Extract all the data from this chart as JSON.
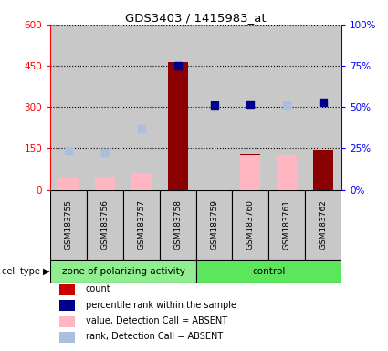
{
  "title": "GDS3403 / 1415983_at",
  "samples": [
    "GSM183755",
    "GSM183756",
    "GSM183757",
    "GSM183758",
    "GSM183759",
    "GSM183760",
    "GSM183761",
    "GSM183762"
  ],
  "count_present": [
    null,
    null,
    null,
    462,
    null,
    130,
    null,
    143
  ],
  "value_absent": [
    40,
    45,
    60,
    null,
    null,
    125,
    125,
    null
  ],
  "rank_absent_left": [
    140,
    135,
    220,
    null,
    null,
    null,
    null,
    null
  ],
  "percentile_present": [
    null,
    null,
    null,
    75,
    51,
    52,
    null,
    53
  ],
  "percentile_absent": [
    null,
    null,
    null,
    null,
    null,
    null,
    51,
    null
  ],
  "ylim_left": [
    0,
    600
  ],
  "ylim_right": [
    0,
    100
  ],
  "yticks_left": [
    0,
    150,
    300,
    450,
    600
  ],
  "ytick_labels_left": [
    "0",
    "150",
    "300",
    "450",
    "600"
  ],
  "yticks_right": [
    0,
    25,
    50,
    75,
    100
  ],
  "ytick_labels_right": [
    "0%",
    "25%",
    "50%",
    "75%",
    "100%"
  ],
  "bar_color_present": "#8B0000",
  "bar_color_absent": "#FFB6C1",
  "dot_color_present": "#00008B",
  "dot_color_absent": "#AABFDD",
  "bg_color": "#FFFFFF",
  "cell_bg": "#C8C8C8",
  "group1_color": "#90EE90",
  "group2_color": "#5CE65C",
  "group1_label": "zone of polarizing activity",
  "group2_label": "control",
  "cell_type_label": "cell type",
  "legend_items": [
    {
      "color": "#CC0000",
      "type": "square",
      "label": "count"
    },
    {
      "color": "#00008B",
      "type": "square",
      "label": "percentile rank within the sample"
    },
    {
      "color": "#FFB6C1",
      "type": "square",
      "label": "value, Detection Call = ABSENT"
    },
    {
      "color": "#AABFDD",
      "type": "square",
      "label": "rank, Detection Call = ABSENT"
    }
  ]
}
